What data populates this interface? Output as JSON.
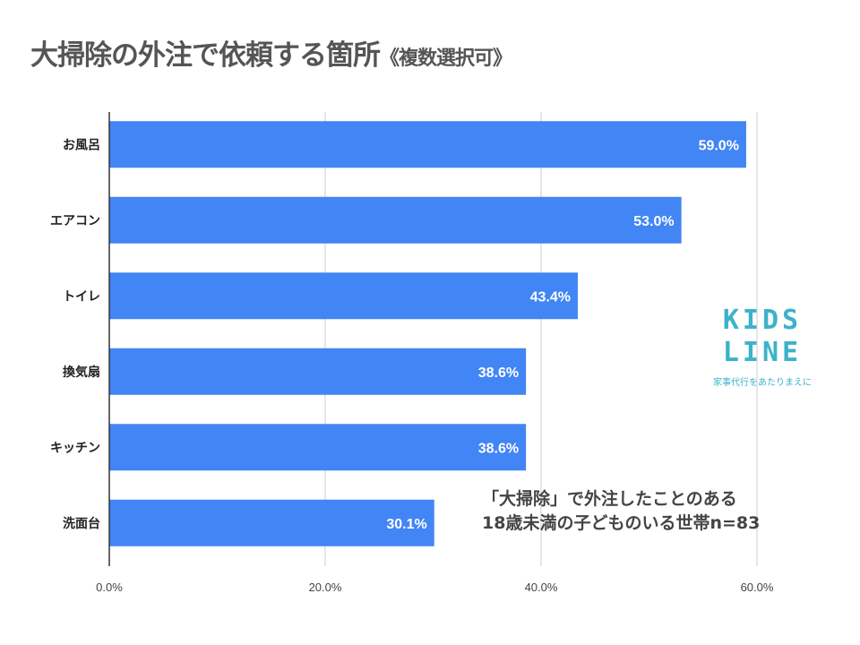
{
  "chart_data": {
    "type": "bar",
    "orientation": "horizontal",
    "title": "大掃除の外注で依頼する箇所",
    "title_suffix": "《複数選択可》",
    "categories": [
      "お風呂",
      "エアコン",
      "トイレ",
      "換気扇",
      "キッチン",
      "洗面台"
    ],
    "values": [
      59.0,
      53.0,
      43.4,
      38.6,
      38.6,
      30.1
    ],
    "data_labels": [
      "59.0%",
      "53.0%",
      "43.4%",
      "38.6%",
      "38.6%",
      "30.1%"
    ],
    "xlim": [
      0,
      60
    ],
    "xticks": [
      0,
      20,
      40,
      60
    ],
    "xtick_labels": [
      "0.0%",
      "20.0%",
      "40.0%",
      "60.0%"
    ],
    "grid": true,
    "bar_color": "#4285f4",
    "annotation": [
      "「大掃除」で外注したことのある",
      "18歳未満の子どものいる世帯n=83"
    ]
  },
  "logo": {
    "line1": "KIDS",
    "line2": "LINE",
    "tagline": "家事代行をあたりまえに"
  }
}
